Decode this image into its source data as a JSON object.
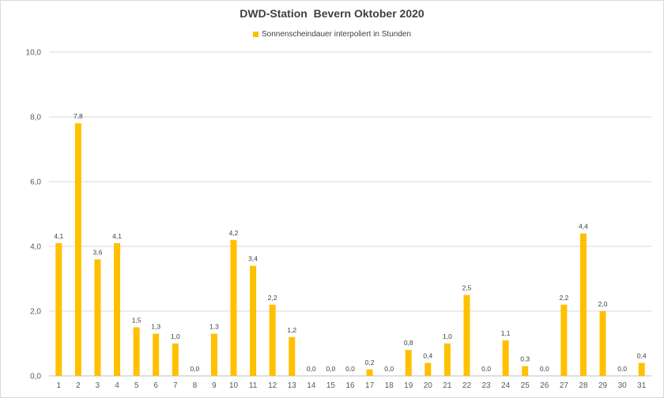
{
  "chart_data": {
    "type": "bar",
    "title": "DWD-Station  Bevern Oktober 2020",
    "legend": "Sonnenscheindauer interpoliert in Stunden",
    "legend_position": "top",
    "grid": true,
    "ylim": [
      0,
      10
    ],
    "yticks": [
      "0,0",
      "2,0",
      "4,0",
      "6,0",
      "8,0",
      "10,0"
    ],
    "categories": [
      "1",
      "2",
      "3",
      "4",
      "5",
      "6",
      "7",
      "8",
      "9",
      "10",
      "11",
      "12",
      "13",
      "14",
      "15",
      "16",
      "17",
      "18",
      "19",
      "20",
      "21",
      "22",
      "23",
      "24",
      "25",
      "26",
      "27",
      "28",
      "29",
      "30",
      "31"
    ],
    "values": [
      4.1,
      7.8,
      3.6,
      4.1,
      1.5,
      1.3,
      1.0,
      0.0,
      1.3,
      4.2,
      3.4,
      2.2,
      1.2,
      0.0,
      0.0,
      0.0,
      0.2,
      0.0,
      0.8,
      0.4,
      1.0,
      2.5,
      0.0,
      1.1,
      0.3,
      0.0,
      2.2,
      4.4,
      2.0,
      0.0,
      0.4
    ],
    "value_labels": [
      "4,1",
      "7,8",
      "3,6",
      "4,1",
      "1,5",
      "1,3",
      "1,0",
      "0,0",
      "1,3",
      "4,2",
      "3,4",
      "2,2",
      "1,2",
      "0,0",
      "0,0",
      "0,0",
      "0,2",
      "0,0",
      "0,8",
      "0,4",
      "1,0",
      "2,5",
      "0,0",
      "1,1",
      "0,3",
      "0,0",
      "2,2",
      "4,4",
      "2,0",
      "0,0",
      "0,4"
    ],
    "bar_color": "#ffc000",
    "grid_color": "#d9d9d9"
  }
}
